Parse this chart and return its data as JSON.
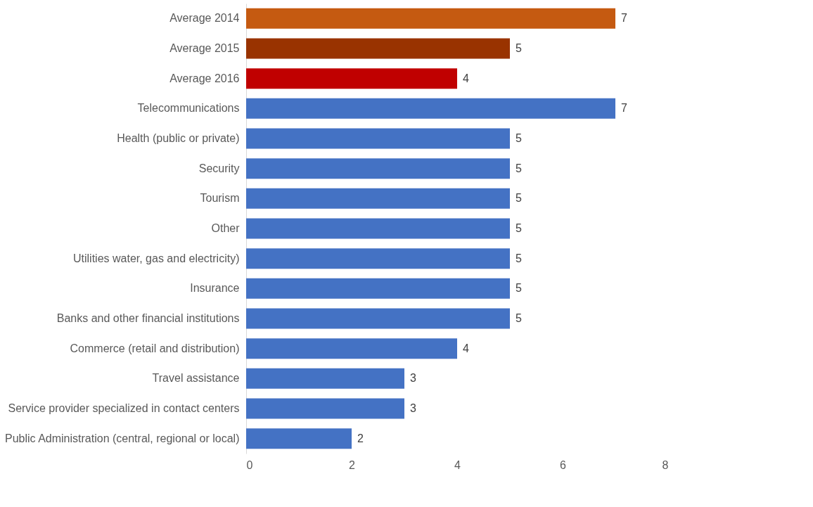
{
  "chart_data": {
    "type": "bar",
    "orientation": "horizontal",
    "categories": [
      "Average 2014",
      "Average 2015",
      "Average 2016",
      "Telecommunications",
      "Health (public or private)",
      "Security",
      "Tourism",
      "Other",
      "Utilities water, gas and electricity)",
      "Insurance",
      "Banks and other financial institutions",
      "Commerce (retail and distribution)",
      "Travel assistance",
      "Service provider specialized in contact centers",
      "Public Administration (central, regional or local)"
    ],
    "values": [
      7,
      5,
      4,
      7,
      5,
      5,
      5,
      5,
      5,
      5,
      5,
      4,
      3,
      3,
      2
    ],
    "colors": [
      "#c55a11",
      "#993300",
      "#c00000",
      "#4472c4",
      "#4472c4",
      "#4472c4",
      "#4472c4",
      "#4472c4",
      "#4472c4",
      "#4472c4",
      "#4472c4",
      "#4472c4",
      "#4472c4",
      "#4472c4",
      "#4472c4"
    ],
    "xlim": [
      0,
      8
    ],
    "xticks": [
      0,
      2,
      4,
      6,
      8
    ],
    "grid": false,
    "data_labels": true
  }
}
